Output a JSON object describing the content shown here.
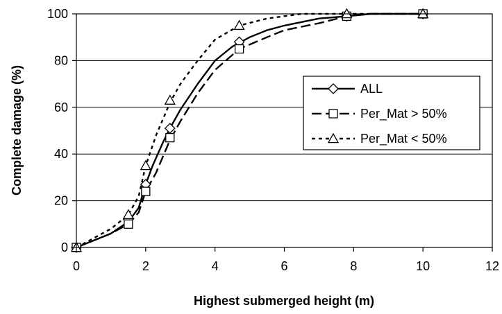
{
  "chart_data": {
    "type": "line",
    "title": "",
    "xlabel": "Highest submerged height (m)",
    "ylabel": "Complete damage (%)",
    "xlim": [
      0,
      12
    ],
    "ylim": [
      0,
      100
    ],
    "xticks": [
      0,
      2,
      4,
      6,
      8,
      10,
      12
    ],
    "yticks": [
      0,
      20,
      40,
      60,
      80,
      100
    ],
    "grid": "horizontal",
    "legend_position": "right",
    "series": [
      {
        "name": "ALL",
        "line_style": "solid",
        "marker": "diamond",
        "points": [
          [
            0,
            0
          ],
          [
            1.5,
            12
          ],
          [
            2.0,
            27
          ],
          [
            2.7,
            51
          ],
          [
            4.7,
            88
          ],
          [
            7.8,
            99
          ],
          [
            10,
            100
          ]
        ],
        "curve": [
          [
            0,
            0
          ],
          [
            0.5,
            3
          ],
          [
            1.0,
            6
          ],
          [
            1.5,
            11
          ],
          [
            1.8,
            17
          ],
          [
            2.0,
            27
          ],
          [
            2.2,
            35
          ],
          [
            2.5,
            45
          ],
          [
            2.7,
            51
          ],
          [
            3.0,
            59
          ],
          [
            3.5,
            70
          ],
          [
            4.0,
            80
          ],
          [
            4.5,
            86
          ],
          [
            5.0,
            90
          ],
          [
            5.5,
            93
          ],
          [
            6.0,
            95
          ],
          [
            7.0,
            98
          ],
          [
            7.8,
            99
          ],
          [
            8.5,
            100
          ],
          [
            10,
            100
          ]
        ]
      },
      {
        "name": "Per_Mat > 50%",
        "line_style": "long-dash",
        "marker": "square",
        "points": [
          [
            0,
            0
          ],
          [
            1.5,
            10
          ],
          [
            2.0,
            24
          ],
          [
            2.7,
            47
          ],
          [
            4.7,
            85
          ],
          [
            7.8,
            99
          ],
          [
            10,
            100
          ]
        ],
        "curve": [
          [
            0,
            0
          ],
          [
            0.5,
            3
          ],
          [
            1.0,
            6
          ],
          [
            1.5,
            10
          ],
          [
            1.8,
            15
          ],
          [
            2.0,
            24
          ],
          [
            2.3,
            32
          ],
          [
            2.7,
            46
          ],
          [
            3.0,
            54
          ],
          [
            3.5,
            66
          ],
          [
            4.0,
            76
          ],
          [
            4.7,
            85
          ],
          [
            5.5,
            90
          ],
          [
            6.0,
            93
          ],
          [
            7.0,
            96
          ],
          [
            7.8,
            99
          ],
          [
            8.5,
            100
          ],
          [
            10,
            100
          ]
        ]
      },
      {
        "name": "Per_Mat < 50%",
        "line_style": "short-dash",
        "marker": "triangle",
        "points": [
          [
            0,
            0
          ],
          [
            1.5,
            14
          ],
          [
            2.0,
            35
          ],
          [
            2.7,
            63
          ],
          [
            4.7,
            95
          ],
          [
            7.8,
            100
          ],
          [
            10,
            100
          ]
        ],
        "curve": [
          [
            0,
            0
          ],
          [
            0.5,
            4
          ],
          [
            1.0,
            8
          ],
          [
            1.5,
            14
          ],
          [
            1.8,
            22
          ],
          [
            2.0,
            35
          ],
          [
            2.3,
            48
          ],
          [
            2.7,
            62
          ],
          [
            3.0,
            70
          ],
          [
            3.5,
            80
          ],
          [
            4.0,
            89
          ],
          [
            4.7,
            95
          ],
          [
            5.5,
            98
          ],
          [
            6.5,
            100
          ],
          [
            7.8,
            100
          ],
          [
            10,
            100
          ]
        ]
      }
    ]
  }
}
